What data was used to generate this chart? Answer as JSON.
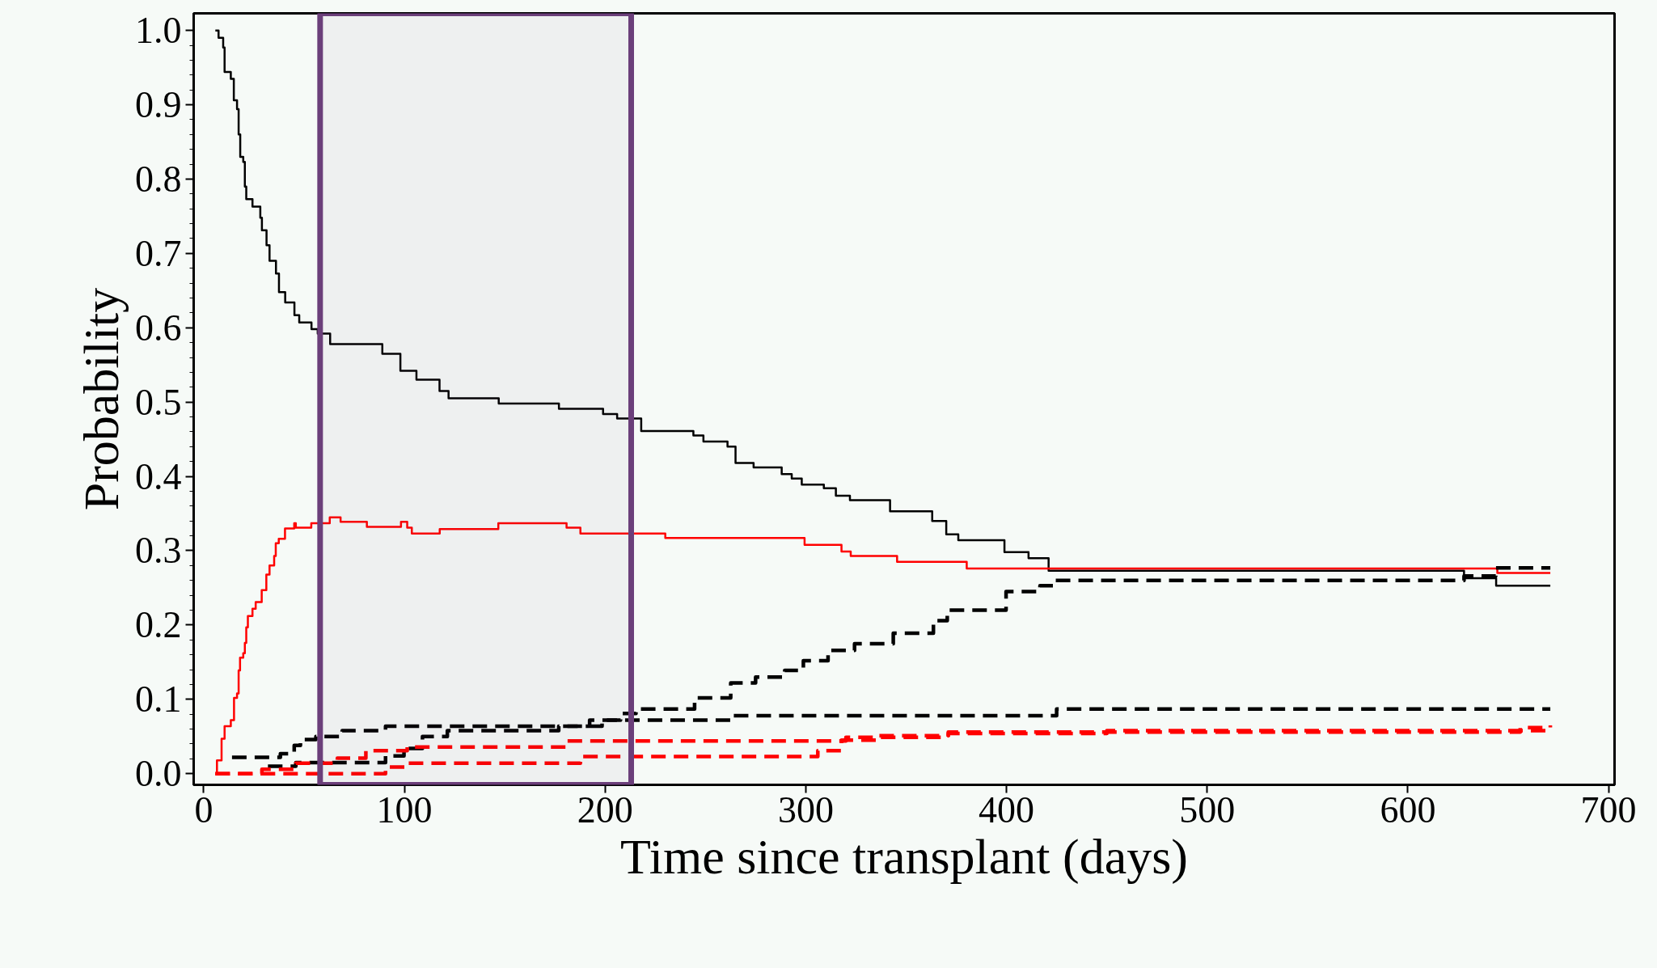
{
  "chart_data": {
    "type": "step",
    "xlabel": "Time since transplant (days)",
    "ylabel": "Probability",
    "xlim": [
      -5,
      703
    ],
    "ylim": [
      -0.015,
      1.023
    ],
    "xticks": [
      0,
      100,
      200,
      300,
      400,
      500,
      600,
      700
    ],
    "yticks": [
      {
        "value": 0,
        "label": "0.0"
      },
      0.1,
      0.2,
      0.3,
      0.4,
      0.5,
      0.6,
      0.7,
      0.8,
      0.9,
      {
        "value": 1,
        "label": "1.0"
      }
    ],
    "grid": false,
    "bands": [
      {
        "axis": "x",
        "from": 58,
        "to": 213,
        "color": "#6b3f7a"
      }
    ],
    "series": [
      {
        "color": "#000000",
        "line_style": "solid",
        "x": [
          5.8,
          7.4,
          9.7,
          10.4,
          13.5,
          15,
          16.6,
          17.4,
          18.2,
          19.7,
          20.5,
          21.2,
          24.3,
          28.2,
          29,
          31.3,
          32.8,
          36,
          37.5,
          40.6,
          45.2,
          47.6,
          53.7,
          56.8,
          63,
          89,
          98,
          106,
          117.5,
          122,
          147,
          177,
          199,
          206,
          218,
          244,
          249,
          261,
          265,
          274,
          288,
          293,
          298,
          309,
          315,
          322,
          342,
          363,
          370,
          376,
          399,
          411,
          421,
          628,
          644,
          671
        ],
        "values": [
          1.0,
          0.99,
          0.977,
          0.944,
          0.935,
          0.906,
          0.894,
          0.86,
          0.83,
          0.823,
          0.79,
          0.773,
          0.763,
          0.748,
          0.731,
          0.711,
          0.69,
          0.673,
          0.648,
          0.634,
          0.617,
          0.607,
          0.598,
          0.592,
          0.578,
          0.565,
          0.542,
          0.53,
          0.515,
          0.505,
          0.498,
          0.491,
          0.484,
          0.478,
          0.461,
          0.455,
          0.447,
          0.44,
          0.418,
          0.412,
          0.403,
          0.397,
          0.389,
          0.384,
          0.374,
          0.368,
          0.353,
          0.34,
          0.322,
          0.314,
          0.298,
          0.29,
          0.273,
          0.263,
          0.253,
          0.253
        ]
      },
      {
        "color": "#ff0000",
        "line_style": "solid",
        "x": [
          5.8,
          6.6,
          8.9,
          10.4,
          13.5,
          15.1,
          16.6,
          17.4,
          18.1,
          19.7,
          20.5,
          21.2,
          22,
          24.3,
          25.9,
          28.9,
          31.2,
          32.8,
          35.1,
          35.9,
          37.4,
          40.5,
          45.1,
          45.9,
          53.6,
          62.8,
          68.2,
          81.3,
          98.3,
          101.4,
          103.7,
          117.6,
          146.8,
          180.8,
          187.7,
          230,
          299.4,
          317.8,
          322.4,
          345.5,
          380.2,
          644.6,
          671
        ],
        "values": [
          0.0,
          0.018,
          0.047,
          0.064,
          0.072,
          0.102,
          0.108,
          0.139,
          0.156,
          0.162,
          0.176,
          0.197,
          0.212,
          0.222,
          0.231,
          0.247,
          0.268,
          0.28,
          0.293,
          0.31,
          0.316,
          0.33,
          0.337,
          0.331,
          0.337,
          0.345,
          0.339,
          0.332,
          0.339,
          0.331,
          0.323,
          0.329,
          0.337,
          0.331,
          0.323,
          0.317,
          0.308,
          0.299,
          0.293,
          0.285,
          0.276,
          0.27,
          0.27
        ]
      },
      {
        "color": "#000000",
        "line_style": "dashed",
        "x": [
          32,
          45.9,
          90.6,
          99.8,
          109,
          121.4,
          176.9,
          198.5,
          207.7,
          215.4,
          244.6,
          262.6,
          275,
          289.5,
          298.8,
          311.1,
          324.3,
          343.6,
          363.6,
          370.5,
          399.8,
          416.7,
          424.4,
          628,
          643.8,
          671
        ],
        "values": [
          0.01,
          0.015,
          0.024,
          0.034,
          0.05,
          0.058,
          0.064,
          0.072,
          0.081,
          0.087,
          0.102,
          0.122,
          0.13,
          0.139,
          0.152,
          0.166,
          0.175,
          0.189,
          0.206,
          0.22,
          0.245,
          0.253,
          0.26,
          0.266,
          0.277,
          0.277
        ]
      },
      {
        "color": "#000000",
        "line_style": "dashed",
        "x": [
          14.1,
          38.2,
          45.1,
          48.2,
          55.9,
          69,
          90.6,
          192.3,
          262.6,
          425,
          671
        ],
        "values": [
          0.022,
          0.027,
          0.038,
          0.046,
          0.05,
          0.058,
          0.064,
          0.072,
          0.078,
          0.087,
          0.087
        ]
      },
      {
        "color": "#ff0000",
        "line_style": "dashed",
        "x": [
          5.8,
          90.6,
          101.4,
          187.7,
          306,
          317.8,
          335.6,
          371,
          656,
          671
        ],
        "values": [
          0.0,
          0.009,
          0.014,
          0.023,
          0.031,
          0.045,
          0.051,
          0.056,
          0.062,
          0.065
        ]
      },
      {
        "color": "#ff0000",
        "line_style": "dashed",
        "x": [
          5.8,
          29,
          45.9,
          66.6,
          80.8,
          101.4,
          180.8,
          320,
          371,
          450,
          671
        ],
        "values": [
          0.0,
          0.006,
          0.014,
          0.021,
          0.031,
          0.036,
          0.044,
          0.049,
          0.054,
          0.058,
          0.06
        ]
      }
    ]
  }
}
